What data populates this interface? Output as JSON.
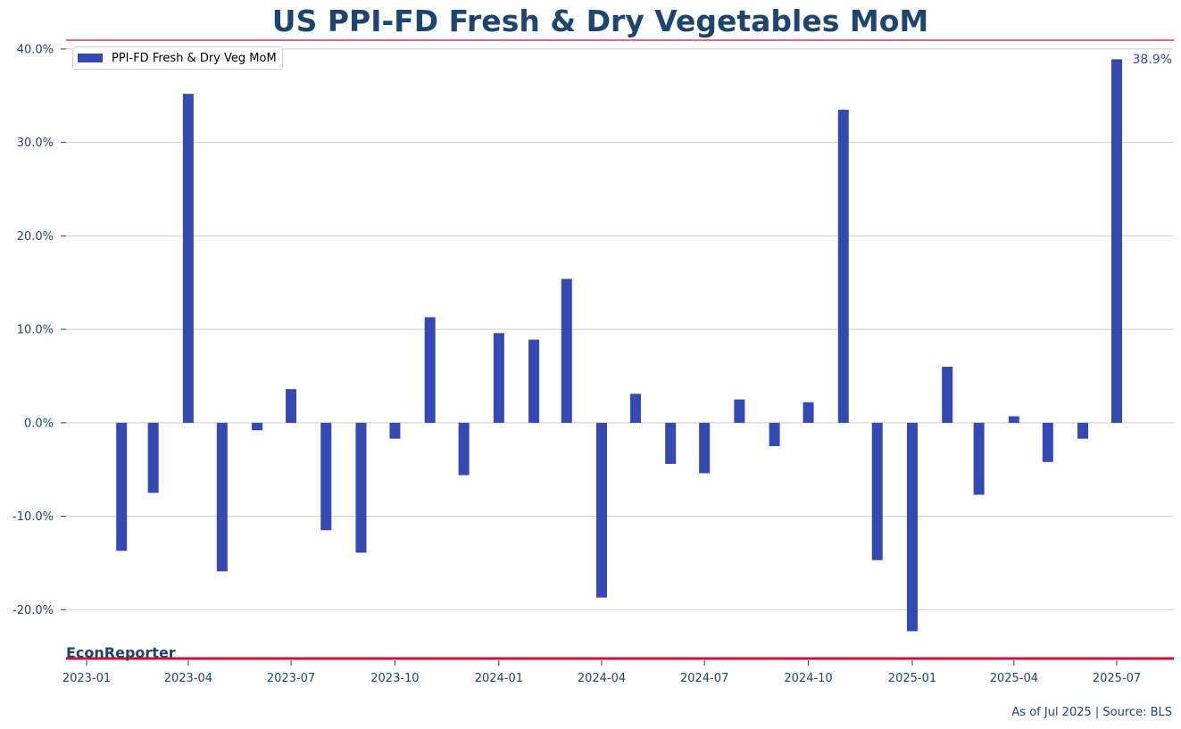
{
  "chart_data": {
    "type": "bar",
    "title": "US PPI-FD Fresh & Dry Vegetables MoM",
    "x": [
      "2023-02",
      "2023-03",
      "2023-04",
      "2023-05",
      "2023-06",
      "2023-07",
      "2023-08",
      "2023-09",
      "2023-10",
      "2023-11",
      "2023-12",
      "2024-01",
      "2024-02",
      "2024-03",
      "2024-04",
      "2024-05",
      "2024-06",
      "2024-07",
      "2024-08",
      "2024-09",
      "2024-10",
      "2024-11",
      "2024-12",
      "2025-01",
      "2025-02",
      "2025-03",
      "2025-04",
      "2025-05",
      "2025-06",
      "2025-07"
    ],
    "series": [
      {
        "name": "PPI-FD Fresh & Dry Veg MoM",
        "values": [
          -13.7,
          -7.5,
          35.2,
          -15.9,
          -0.8,
          3.6,
          -11.5,
          -13.9,
          -1.7,
          11.3,
          -5.6,
          9.6,
          8.9,
          15.4,
          -18.7,
          3.1,
          -4.4,
          -5.4,
          2.5,
          -2.5,
          2.2,
          33.5,
          -14.7,
          -22.3,
          6.0,
          -7.7,
          0.7,
          -4.2,
          -1.7,
          38.9
        ]
      }
    ],
    "xticks": [
      "2023-01",
      "2023-04",
      "2023-07",
      "2023-10",
      "2024-01",
      "2024-04",
      "2024-07",
      "2024-10",
      "2025-01",
      "2025-04",
      "2025-07"
    ],
    "yticks": [
      "40.0%",
      "30.0%",
      "20.0%",
      "10.0%",
      "0.0%",
      "-10.0%",
      "-20.0%"
    ],
    "ylim": [
      -25.7,
      41.9
    ],
    "legend": "top-left",
    "grid": "horizontal",
    "last_value_label": "38.9%"
  },
  "colors": {
    "bar": "#3449b3",
    "title": "#1c4670",
    "accent_line": "#d0103a",
    "grid": "#cccccc"
  },
  "footer": {
    "brand": "EconReporter",
    "source": "As of Jul 2025 | Source: BLS"
  }
}
